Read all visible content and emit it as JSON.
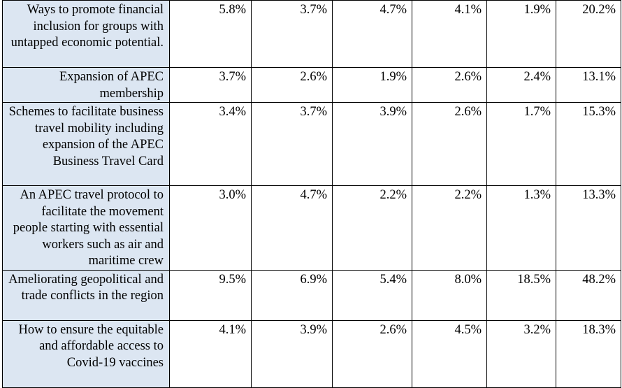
{
  "table": {
    "rows": [
      {
        "label": "Ways to promote financial inclusion for groups with untapped economic potential.",
        "values": [
          "5.8%",
          "3.7%",
          "4.7%",
          "4.1%",
          "1.9%",
          "20.2%"
        ]
      },
      {
        "label": "Expansion of APEC membership",
        "values": [
          "3.7%",
          "2.6%",
          "1.9%",
          "2.6%",
          "2.4%",
          "13.1%"
        ]
      },
      {
        "label": "Schemes to facilitate business travel mobility including expansion of the APEC Business Travel Card",
        "values": [
          "3.4%",
          "3.7%",
          "3.9%",
          "2.6%",
          "1.7%",
          "15.3%"
        ]
      },
      {
        "label": "An APEC travel protocol to facilitate the movement people starting with essential workers such as air and maritime crew",
        "values": [
          "3.0%",
          "4.7%",
          "2.2%",
          "2.2%",
          "1.3%",
          "13.3%"
        ]
      },
      {
        "label": "Ameliorating geopolitical and trade conflicts in the region",
        "values": [
          "9.5%",
          "6.9%",
          "5.4%",
          "8.0%",
          "18.5%",
          "48.2%"
        ]
      },
      {
        "label": "How to ensure the equitable and affordable access to Covid-19 vaccines",
        "values": [
          "4.1%",
          "3.9%",
          "2.6%",
          "4.5%",
          "3.2%",
          "18.3%"
        ]
      }
    ]
  },
  "colors": {
    "label_background": "#dce6f2",
    "border": "#000000"
  }
}
